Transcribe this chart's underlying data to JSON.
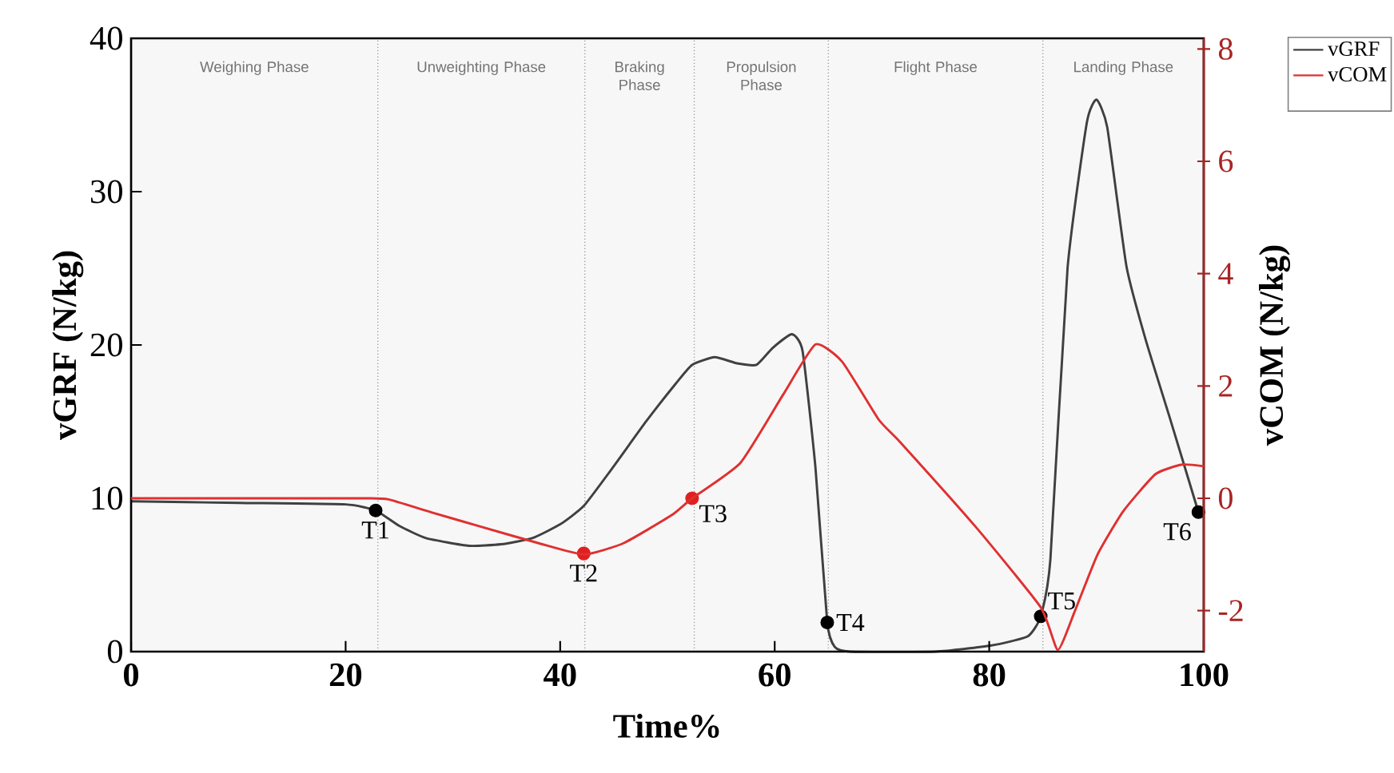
{
  "chart_data": {
    "type": "line",
    "xlabel": "Time%",
    "ylabel": "vGRF (N/kg)",
    "y2label": "vCOM (N/kg)",
    "xlim": [
      0,
      100
    ],
    "xticks": [
      0,
      20,
      40,
      60,
      80,
      100
    ],
    "ylim": [
      0,
      40
    ],
    "yticks": [
      0,
      10,
      20,
      30,
      40
    ],
    "y2lim": [
      -2.73,
      8.19
    ],
    "y2ticks": [
      -2,
      0,
      2,
      4,
      6,
      8
    ],
    "legend": "top right",
    "series": [
      {
        "name": "vGRF",
        "color": "#404040",
        "x": [
          0,
          10,
          20,
          22.8,
          25,
          27.5,
          31.5,
          34.5,
          37.4,
          40,
          42.2,
          44.9,
          48,
          50.8,
          52.3,
          54.4,
          56.5,
          58.3,
          59.8,
          61.6,
          62.6,
          63.8,
          64.9,
          65.6,
          67,
          75,
          80.2,
          83.6,
          84.8,
          85.7,
          87.3,
          89.1,
          90,
          91,
          92.8,
          94.6,
          96.9,
          99.5
        ],
        "values": [
          9.8,
          9.7,
          9.6,
          9.2,
          8.2,
          7.4,
          6.9,
          7.0,
          7.4,
          8.3,
          9.5,
          12,
          15,
          17.5,
          18.7,
          19.2,
          18.8,
          18.7,
          19.8,
          20.7,
          19.6,
          12,
          1.9,
          0.3,
          0,
          0,
          0.4,
          1.0,
          2.3,
          6,
          25,
          34.5,
          36,
          34.2,
          25.1,
          20.3,
          15.1,
          9.1
        ]
      },
      {
        "name": "vCOM",
        "color": "#e03030",
        "axis": "y2",
        "x": [
          0,
          10,
          22,
          24,
          28,
          32.5,
          38,
          42.2,
          45.9,
          50.4,
          52.3,
          56.8,
          60.8,
          63.8,
          66.3,
          69.7,
          71.7,
          78.7,
          84.8,
          86.4,
          88,
          90.1,
          92.5,
          95.5,
          98,
          100
        ],
        "values": [
          0,
          0,
          0,
          -0.02,
          -0.25,
          -0.5,
          -0.8,
          -1.0,
          -0.8,
          -0.3,
          0,
          0.63,
          1.85,
          2.74,
          2.43,
          1.4,
          1.0,
          -0.5,
          -1.94,
          -2.7,
          -2.0,
          -1.0,
          -0.23,
          0.43,
          0.6,
          0.57
        ]
      },
      {
        "type": "scatter",
        "marker": "circle",
        "x": [
          22.8,
          42.2,
          52.3,
          64.9,
          84.8,
          99.5
        ],
        "values": [
          9.2,
          6.4,
          10.0,
          1.9,
          2.3,
          9.1
        ],
        "colors": [
          "#000000",
          "#e02020",
          "#e02020",
          "#000000",
          "#000000",
          "#000000"
        ]
      }
    ],
    "bands": [
      {
        "axis": "x",
        "from": 0,
        "to": 23,
        "label": "Weighing Phase",
        "color": "#f7f7f7"
      },
      {
        "axis": "x",
        "from": 23,
        "to": 42.3,
        "label": "Unweighting Phase",
        "color": "#f7f7f7"
      },
      {
        "axis": "x",
        "from": 42.3,
        "to": 52.5,
        "label": "Braking Phase",
        "color": "#f7f7f7"
      },
      {
        "axis": "x",
        "from": 52.5,
        "to": 65,
        "label": "Propulsion Phase",
        "color": "#f7f7f7"
      },
      {
        "axis": "x",
        "from": 65,
        "to": 85,
        "label": "Flight Phase",
        "color": "#f7f7f7"
      },
      {
        "axis": "x",
        "from": 85,
        "to": 100,
        "label": "Landing Phase",
        "color": "#f7f7f7"
      }
    ],
    "annotations": [
      {
        "text": "T1",
        "x": 22.8,
        "y": 9.2
      },
      {
        "text": "T2",
        "x": 42.2,
        "y": 6.4
      },
      {
        "text": "T3",
        "x": 52.3,
        "y": 10.0
      },
      {
        "text": "T4",
        "x": 64.9,
        "y": 1.9
      },
      {
        "text": "T5",
        "x": 84.8,
        "y": 2.3
      },
      {
        "text": "T6",
        "x": 99.5,
        "y": 9.1
      }
    ]
  }
}
